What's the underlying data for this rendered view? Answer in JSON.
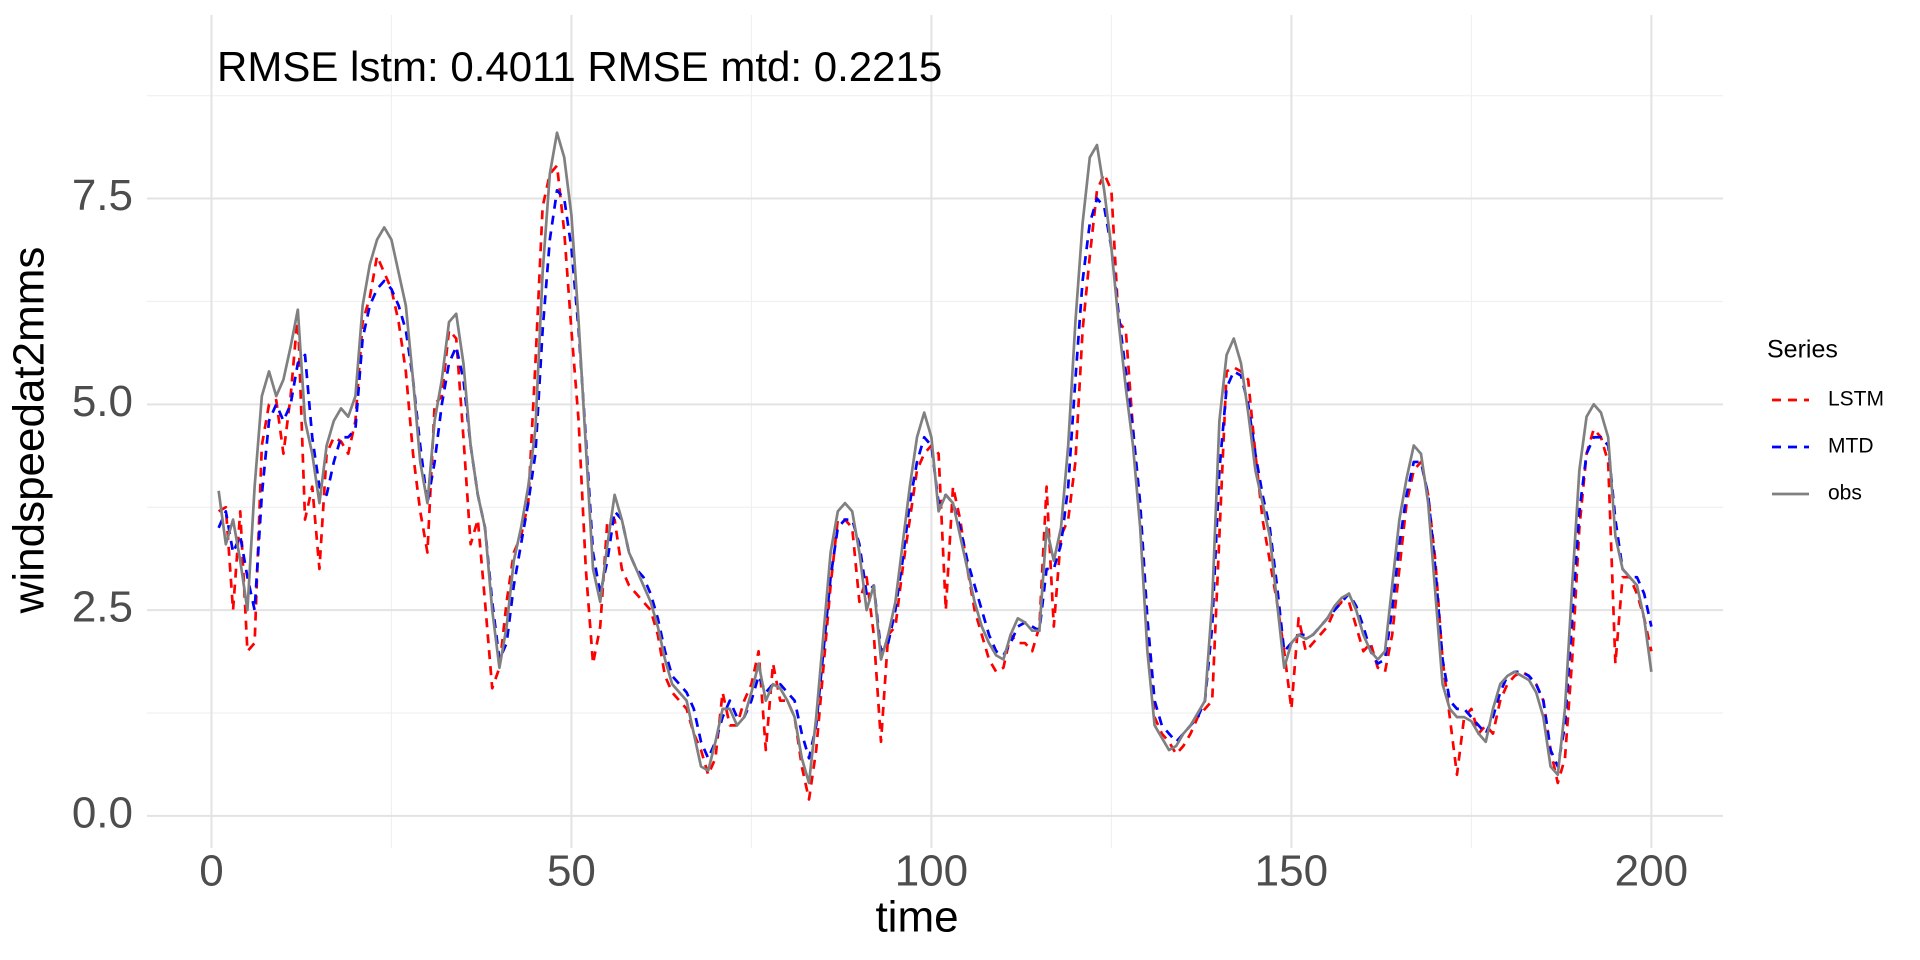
{
  "chart_data": {
    "type": "line",
    "annotation": "RMSE lstm: 0.4011 RMSE mtd: 0.2215",
    "x_label": "time",
    "y_label": "windspeedat2mms",
    "legend_title": "Series",
    "legend_position": "right",
    "grid": true,
    "xlim": [
      -8.95,
      209.95
    ],
    "ylim": [
      -0.39,
      9.73
    ],
    "xticks": [
      0,
      50,
      100,
      150,
      200
    ],
    "yticks": [
      {
        "value": 0,
        "label": "0.0"
      },
      {
        "value": 2.5,
        "label": "2.5"
      },
      {
        "value": 5,
        "label": "5.0"
      },
      {
        "value": 7.5,
        "label": "7.5"
      }
    ],
    "x": [
      1,
      2,
      3,
      4,
      5,
      6,
      7,
      8,
      9,
      10,
      11,
      12,
      13,
      14,
      15,
      16,
      17,
      18,
      19,
      20,
      21,
      22,
      23,
      24,
      25,
      26,
      27,
      28,
      29,
      30,
      31,
      32,
      33,
      34,
      35,
      36,
      37,
      38,
      39,
      40,
      41,
      42,
      43,
      44,
      45,
      46,
      47,
      48,
      49,
      50,
      51,
      52,
      53,
      54,
      55,
      56,
      57,
      58,
      59,
      60,
      61,
      62,
      63,
      64,
      65,
      66,
      67,
      68,
      69,
      70,
      71,
      72,
      73,
      74,
      75,
      76,
      77,
      78,
      79,
      80,
      81,
      82,
      83,
      84,
      85,
      86,
      87,
      88,
      89,
      90,
      91,
      92,
      93,
      94,
      95,
      96,
      97,
      98,
      99,
      100,
      101,
      102,
      103,
      104,
      105,
      106,
      107,
      108,
      109,
      110,
      111,
      112,
      113,
      114,
      115,
      116,
      117,
      118,
      119,
      120,
      121,
      122,
      123,
      124,
      125,
      126,
      127,
      128,
      129,
      130,
      131,
      132,
      133,
      134,
      135,
      136,
      137,
      138,
      139,
      140,
      141,
      142,
      143,
      144,
      145,
      146,
      147,
      148,
      149,
      150,
      151,
      152,
      153,
      154,
      155,
      156,
      157,
      158,
      159,
      160,
      161,
      162,
      163,
      164,
      165,
      166,
      167,
      168,
      169,
      170,
      171,
      172,
      173,
      174,
      175,
      176,
      177,
      178,
      179,
      180,
      181,
      182,
      183,
      184,
      185,
      186,
      187,
      188,
      189,
      190,
      191,
      192,
      193,
      194,
      195,
      196,
      197,
      198,
      199,
      200
    ],
    "series": [
      {
        "name": "LSTM",
        "color": "#ff0000",
        "linetype": "dashed",
        "values": [
          3.7,
          3.75,
          2.5,
          3.7,
          2.0,
          2.1,
          4.5,
          5.0,
          5.05,
          4.4,
          5.1,
          6.1,
          3.6,
          4.0,
          3.0,
          4.4,
          4.6,
          4.55,
          4.4,
          4.8,
          6.0,
          6.3,
          6.8,
          6.6,
          6.4,
          6.0,
          5.4,
          4.4,
          3.7,
          3.2,
          5.0,
          5.1,
          5.9,
          5.8,
          4.6,
          3.3,
          3.6,
          2.6,
          1.55,
          1.8,
          2.6,
          3.2,
          3.4,
          3.8,
          5.5,
          7.4,
          7.8,
          7.9,
          7.1,
          5.9,
          4.8,
          3.0,
          1.85,
          2.3,
          3.6,
          3.6,
          3.0,
          2.8,
          2.7,
          2.6,
          2.5,
          2.2,
          1.7,
          1.5,
          1.4,
          1.3,
          1.0,
          0.8,
          0.5,
          0.7,
          1.5,
          1.1,
          1.1,
          1.4,
          1.6,
          2.0,
          0.8,
          1.85,
          1.4,
          1.4,
          1.2,
          0.6,
          0.2,
          0.8,
          1.8,
          2.8,
          3.6,
          3.6,
          3.5,
          2.6,
          2.9,
          2.2,
          0.9,
          2.2,
          2.3,
          3.0,
          3.6,
          4.2,
          4.4,
          4.5,
          4.4,
          2.5,
          4.0,
          3.6,
          3.0,
          2.5,
          2.2,
          1.9,
          1.75,
          1.8,
          2.2,
          2.1,
          2.1,
          2.0,
          2.3,
          4.0,
          2.3,
          3.4,
          3.6,
          4.3,
          5.9,
          6.8,
          7.6,
          7.8,
          7.6,
          6.0,
          5.9,
          4.7,
          3.6,
          2.2,
          1.2,
          1.0,
          0.9,
          0.75,
          0.85,
          1.0,
          1.2,
          1.3,
          1.4,
          3.4,
          5.4,
          5.45,
          5.4,
          5.3,
          4.4,
          3.6,
          3.1,
          2.6,
          2.0,
          1.3,
          2.4,
          2.0,
          2.1,
          2.2,
          2.3,
          2.5,
          2.6,
          2.6,
          2.3,
          2.0,
          2.1,
          1.8,
          1.75,
          2.2,
          3.0,
          3.8,
          4.2,
          4.3,
          3.9,
          3.1,
          1.9,
          1.2,
          0.5,
          1.2,
          1.3,
          1.0,
          1.1,
          1.0,
          1.4,
          1.6,
          1.7,
          1.75,
          1.7,
          1.6,
          1.4,
          0.8,
          0.4,
          0.7,
          1.9,
          3.5,
          4.4,
          4.7,
          4.6,
          4.3,
          1.85,
          2.9,
          2.9,
          2.7,
          2.4,
          2.0
        ]
      },
      {
        "name": "MTD",
        "color": "#0000ff",
        "linetype": "dashed",
        "values": [
          3.5,
          3.7,
          3.2,
          3.4,
          2.9,
          2.5,
          3.9,
          4.8,
          5.0,
          4.8,
          5.0,
          5.5,
          5.6,
          4.6,
          4.0,
          3.9,
          4.3,
          4.6,
          4.6,
          4.7,
          5.8,
          6.2,
          6.4,
          6.5,
          6.4,
          6.2,
          5.9,
          5.3,
          4.5,
          3.8,
          4.3,
          5.0,
          5.5,
          5.7,
          5.3,
          4.5,
          3.9,
          3.5,
          2.6,
          1.9,
          2.1,
          2.8,
          3.3,
          3.8,
          4.4,
          5.9,
          7.0,
          7.6,
          7.5,
          6.9,
          5.9,
          4.6,
          3.2,
          2.7,
          3.1,
          3.7,
          3.6,
          3.2,
          3.0,
          2.9,
          2.7,
          2.4,
          2.0,
          1.7,
          1.6,
          1.5,
          1.3,
          0.9,
          0.7,
          0.9,
          1.2,
          1.4,
          1.2,
          1.2,
          1.4,
          1.7,
          1.5,
          1.6,
          1.6,
          1.5,
          1.4,
          1.0,
          0.7,
          1.1,
          2.0,
          2.9,
          3.5,
          3.6,
          3.6,
          3.3,
          2.7,
          2.8,
          2.0,
          2.1,
          2.5,
          3.1,
          3.8,
          4.3,
          4.6,
          4.5,
          3.8,
          3.9,
          3.8,
          3.5,
          3.1,
          2.8,
          2.5,
          2.2,
          2.0,
          1.95,
          2.1,
          2.3,
          2.35,
          2.3,
          2.25,
          3.0,
          3.0,
          3.3,
          4.0,
          5.3,
          6.5,
          7.2,
          7.5,
          7.4,
          6.9,
          6.1,
          5.4,
          4.7,
          3.8,
          2.4,
          1.4,
          1.1,
          1.0,
          0.9,
          1.0,
          1.1,
          1.2,
          1.4,
          2.3,
          4.2,
          5.2,
          5.4,
          5.35,
          5.0,
          4.4,
          3.9,
          3.5,
          2.8,
          2.0,
          2.1,
          2.2,
          2.2,
          2.2,
          2.3,
          2.4,
          2.5,
          2.6,
          2.7,
          2.55,
          2.3,
          2.0,
          1.85,
          1.9,
          2.5,
          3.3,
          3.9,
          4.3,
          4.3,
          3.9,
          3.0,
          1.9,
          1.4,
          1.3,
          1.3,
          1.2,
          1.1,
          1.0,
          1.2,
          1.5,
          1.7,
          1.75,
          1.75,
          1.7,
          1.6,
          1.4,
          0.8,
          0.6,
          1.1,
          2.4,
          3.7,
          4.4,
          4.6,
          4.6,
          4.5,
          3.6,
          3.0,
          2.9,
          2.9,
          2.7,
          2.3
        ]
      },
      {
        "name": "obs",
        "color": "#808080",
        "linetype": "solid",
        "values": [
          3.95,
          3.3,
          3.6,
          3.1,
          2.5,
          4.0,
          5.1,
          5.4,
          5.1,
          5.3,
          5.7,
          6.15,
          4.8,
          4.4,
          3.8,
          4.5,
          4.8,
          4.95,
          4.85,
          5.1,
          6.2,
          6.7,
          7.0,
          7.15,
          7.0,
          6.6,
          6.2,
          5.3,
          4.3,
          3.8,
          4.8,
          5.3,
          6.0,
          6.1,
          5.5,
          4.5,
          3.9,
          3.5,
          2.5,
          1.8,
          2.3,
          3.1,
          3.5,
          4.0,
          4.7,
          6.6,
          7.8,
          8.3,
          8.0,
          7.3,
          6.0,
          4.5,
          3.0,
          2.6,
          3.3,
          3.9,
          3.6,
          3.2,
          3.0,
          2.8,
          2.6,
          2.3,
          1.9,
          1.6,
          1.5,
          1.4,
          1.0,
          0.6,
          0.55,
          0.9,
          1.3,
          1.3,
          1.1,
          1.2,
          1.5,
          1.85,
          1.4,
          1.6,
          1.55,
          1.4,
          1.2,
          0.7,
          0.4,
          1.2,
          2.2,
          3.2,
          3.7,
          3.8,
          3.7,
          3.2,
          2.5,
          2.8,
          1.9,
          2.2,
          2.6,
          3.3,
          4.0,
          4.6,
          4.9,
          4.6,
          3.7,
          3.9,
          3.8,
          3.4,
          3.0,
          2.6,
          2.3,
          2.1,
          1.95,
          1.9,
          2.2,
          2.4,
          2.35,
          2.25,
          2.25,
          3.5,
          3.1,
          3.5,
          4.5,
          6.0,
          7.2,
          8.0,
          8.15,
          7.6,
          6.9,
          6.0,
          5.2,
          4.5,
          3.5,
          2.0,
          1.1,
          0.95,
          0.8,
          0.85,
          1.0,
          1.1,
          1.25,
          1.4,
          2.6,
          4.8,
          5.6,
          5.8,
          5.5,
          4.9,
          4.2,
          3.8,
          3.4,
          2.6,
          1.8,
          2.1,
          2.2,
          2.15,
          2.2,
          2.3,
          2.4,
          2.55,
          2.65,
          2.7,
          2.5,
          2.2,
          2.0,
          1.9,
          2.0,
          2.8,
          3.6,
          4.1,
          4.5,
          4.4,
          3.8,
          2.7,
          1.6,
          1.3,
          1.2,
          1.2,
          1.15,
          1.0,
          0.9,
          1.3,
          1.6,
          1.7,
          1.75,
          1.7,
          1.65,
          1.5,
          1.2,
          0.6,
          0.5,
          1.3,
          2.8,
          4.2,
          4.85,
          5.0,
          4.9,
          4.6,
          3.4,
          3.0,
          2.9,
          2.8,
          2.4,
          1.75
        ]
      }
    ]
  }
}
